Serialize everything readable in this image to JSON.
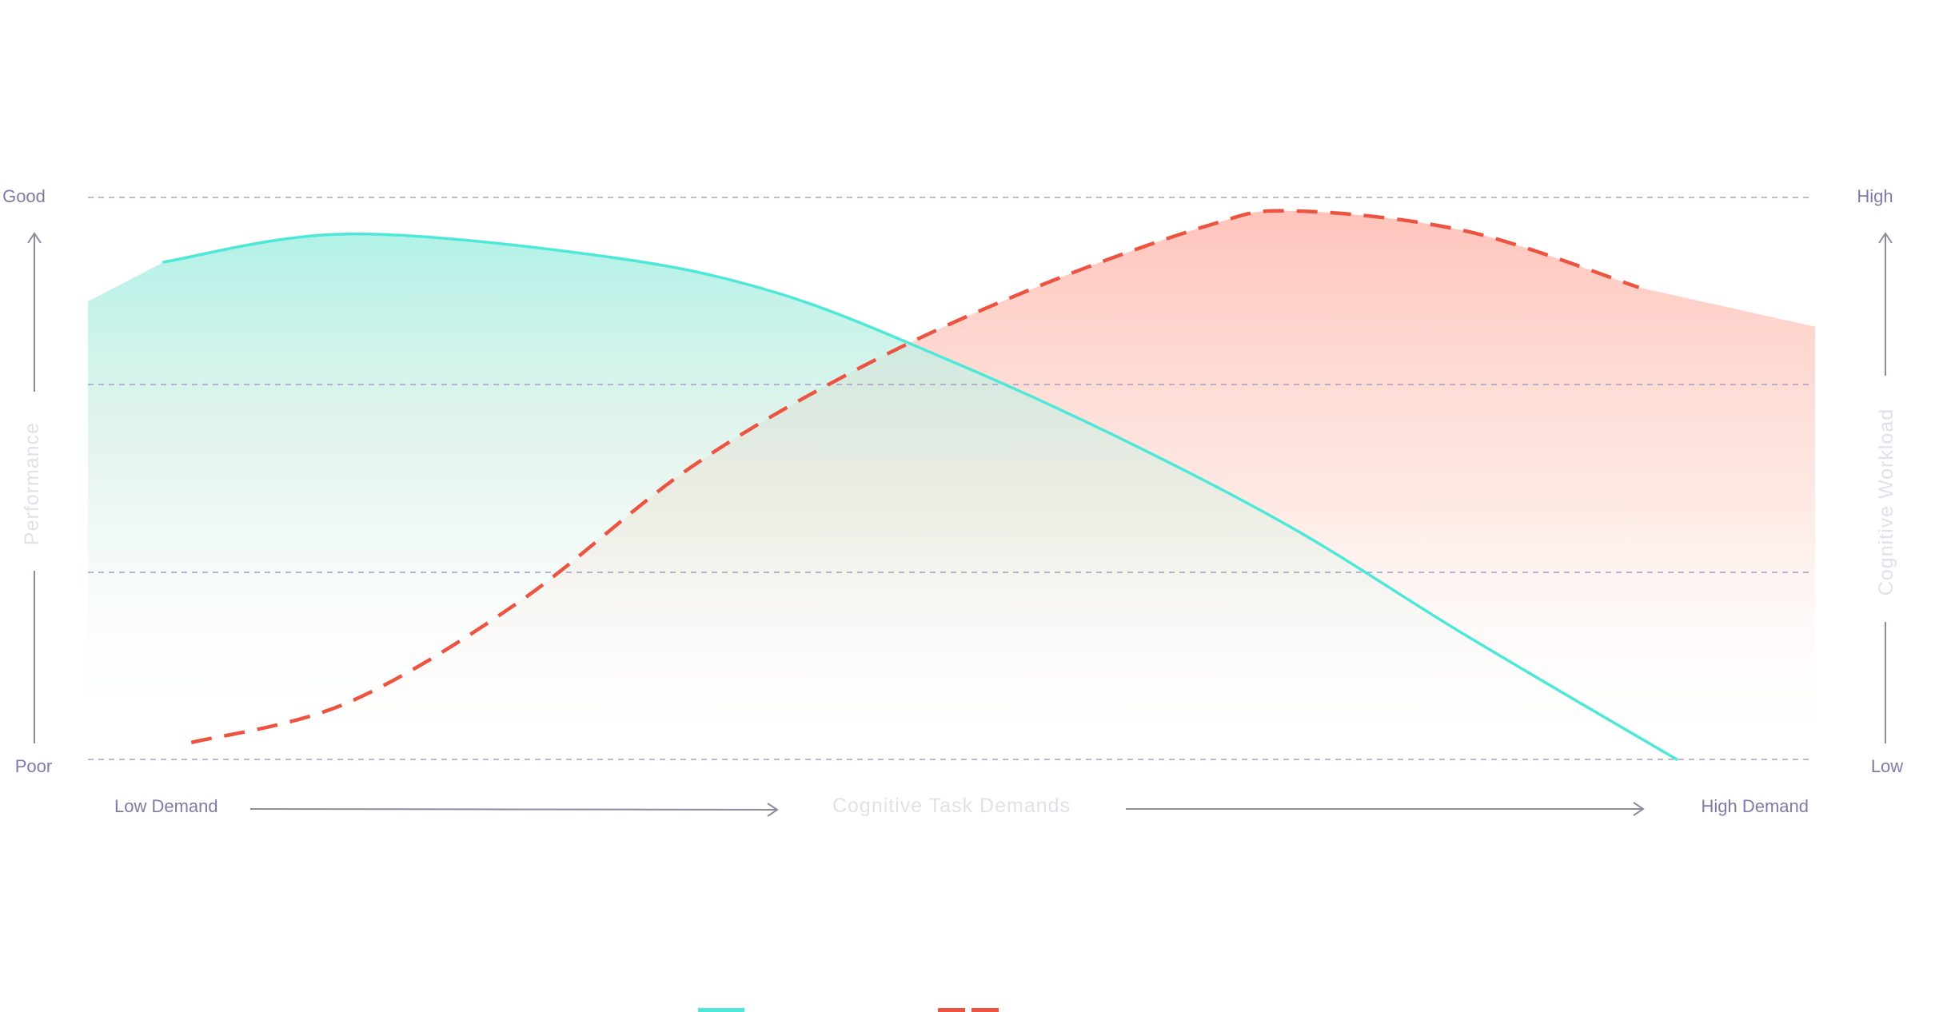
{
  "chart_data": {
    "type": "line",
    "title": "",
    "x_axis": {
      "title": "Cognitive Task Demands",
      "min_label": "Low Demand",
      "max_label": "High Demand",
      "range": [
        0,
        100
      ]
    },
    "y_left": {
      "title": "Performance",
      "top_label": "Good",
      "bottom_label": "Poor",
      "range": [
        0,
        100
      ]
    },
    "y_right": {
      "title": "Cognitive Workload",
      "top_label": "High",
      "bottom_label": "Low",
      "range": [
        0,
        100
      ]
    },
    "grid": true,
    "gridlines_y": [
      0,
      33.3,
      66.7,
      100
    ],
    "series": [
      {
        "style": "solid",
        "color": "#4de8d8",
        "x": [
          4.4,
          15,
          30,
          40,
          50,
          60,
          70,
          80,
          92.2
        ],
        "y": [
          88.5,
          93.5,
          89.5,
          83,
          71,
          57,
          41,
          22,
          0
        ]
      },
      {
        "style": "dashed",
        "color": "#ec5340",
        "x": [
          6,
          15,
          25,
          35,
          45,
          55,
          65,
          70,
          80,
          90
        ],
        "y": [
          3,
          10,
          28,
          52,
          70,
          84,
          95,
          97.6,
          94,
          84
        ]
      }
    ],
    "legend": {
      "placement": "bottom-center",
      "entries": [
        {
          "color": "#4de8d8",
          "style": "solid"
        },
        {
          "color": "#ec5340",
          "style": "dashed"
        }
      ]
    },
    "fill_colors": {
      "performance": "#aef1e6",
      "workload": "#ffc4bb"
    },
    "grid_color": "#a9a3c8",
    "label_color": "#7f7aa8",
    "title_color": "#e2e0e8",
    "axis_arrow_color": "#8f8b9e"
  }
}
